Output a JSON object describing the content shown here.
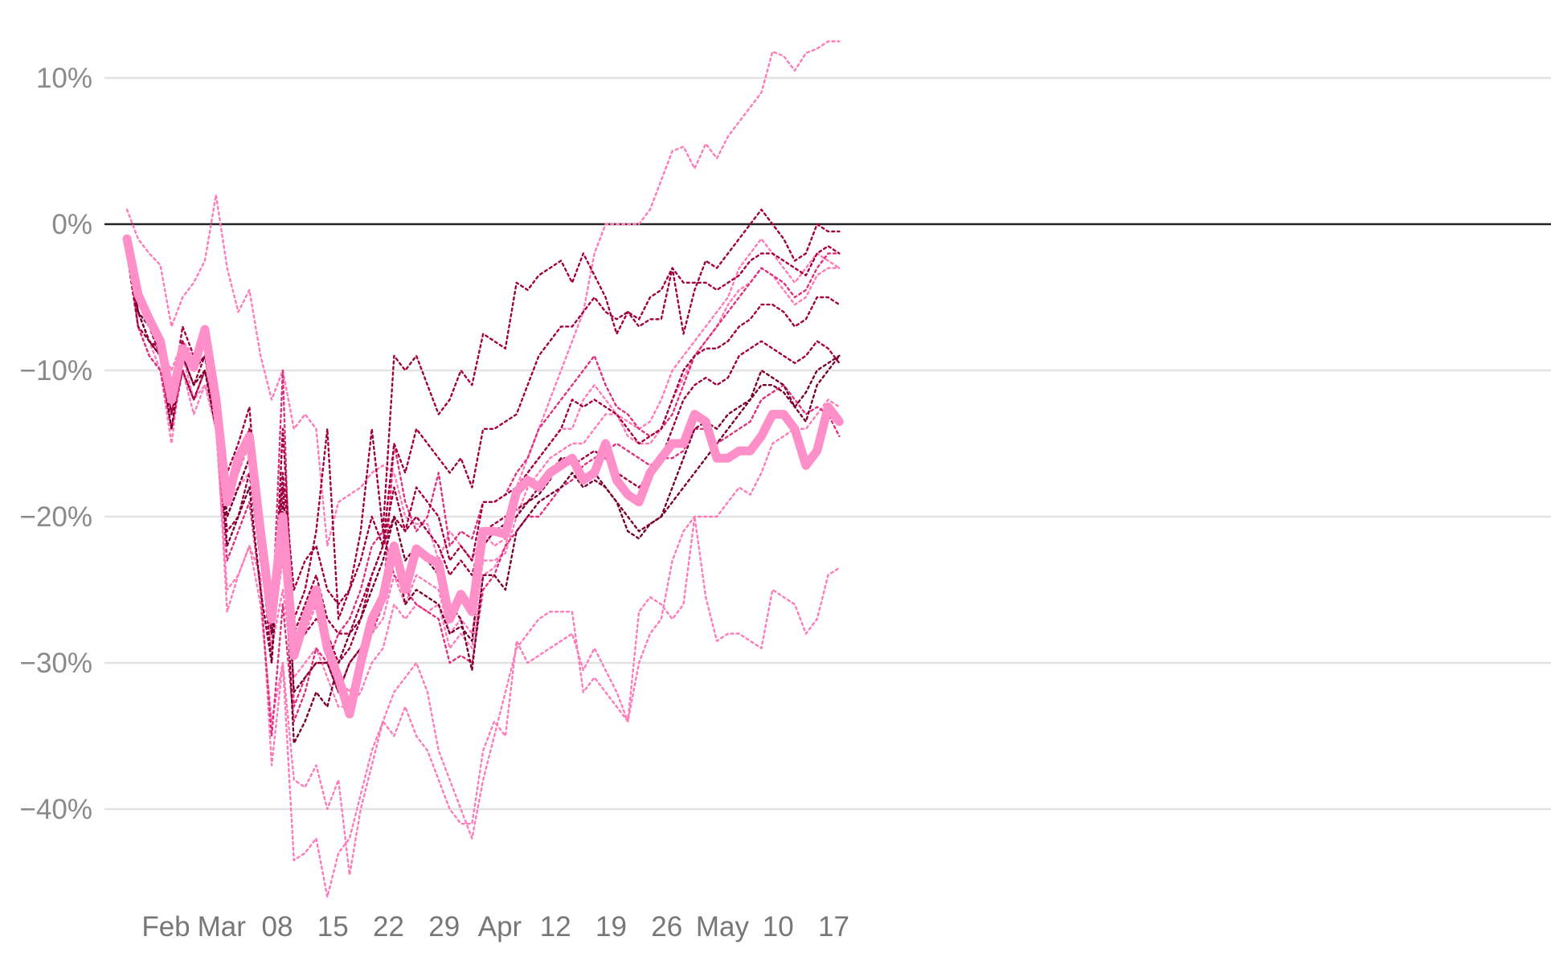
{
  "chart_data": {
    "type": "line",
    "title": "",
    "xlabel": "",
    "ylabel": "",
    "grid": true,
    "y_ticks": [
      {
        "value": 10,
        "label": "10%"
      },
      {
        "value": 0,
        "label": "0%"
      },
      {
        "value": -10,
        "label": "−10%"
      },
      {
        "value": -20,
        "label": "−20%"
      },
      {
        "value": -30,
        "label": "−30%"
      },
      {
        "value": -40,
        "label": "−40%"
      }
    ],
    "x_ticks": [
      {
        "value": 3.5,
        "label": "Feb"
      },
      {
        "value": 8.5,
        "label": "Mar"
      },
      {
        "value": 13.5,
        "label": "08"
      },
      {
        "value": 18.5,
        "label": "15"
      },
      {
        "value": 23.5,
        "label": "22"
      },
      {
        "value": 28.5,
        "label": "29"
      },
      {
        "value": 33.5,
        "label": "Apr"
      },
      {
        "value": 38.5,
        "label": "12"
      },
      {
        "value": 43.5,
        "label": "19"
      },
      {
        "value": 48.5,
        "label": "26"
      },
      {
        "value": 53.5,
        "label": "May"
      },
      {
        "value": 58.5,
        "label": "10"
      },
      {
        "value": 63.5,
        "label": "17"
      }
    ],
    "xlim": [
      0,
      64.5
    ],
    "ylim": [
      -46,
      14
    ],
    "colors": {
      "highlight": "#ff8fc8",
      "light": "#ff7ab8",
      "medium": "#e0307d",
      "dark": "#a3003f",
      "darker": "#7a0030"
    },
    "x": [
      0,
      1,
      2,
      3,
      4,
      5,
      6,
      7,
      8,
      9,
      10,
      11,
      12,
      13,
      14,
      15,
      16,
      17,
      18,
      19,
      20,
      21,
      22,
      23,
      24,
      25,
      26,
      27,
      28,
      29,
      30,
      31,
      32,
      33,
      34,
      35,
      36,
      37,
      38,
      39,
      40,
      41,
      42,
      43,
      44,
      45,
      46,
      47,
      48,
      49,
      50,
      51,
      52,
      53,
      54,
      55,
      56,
      57,
      58,
      59,
      60,
      61,
      62,
      63,
      64
    ],
    "highlight_series": {
      "values": [
        -1,
        -4.8,
        -6.5,
        -8,
        -12,
        -8.5,
        -9.8,
        -7.2,
        -12,
        -19,
        -16,
        -14.5,
        -21,
        -27,
        -20,
        -29.5,
        -27,
        -25,
        -29,
        -31,
        -33.5,
        -30,
        -27,
        -25.5,
        -22,
        -25,
        -22.2,
        -22.8,
        -23.2,
        -27,
        -25.3,
        -26.5,
        -21,
        -21,
        -21.2,
        -18.3,
        -17.5,
        -18,
        -17,
        -16.5,
        -16,
        -17.5,
        -17,
        -15,
        -17.5,
        -18.5,
        -19,
        -17,
        -16,
        -15,
        -15,
        -13,
        -13.5,
        -16,
        -16,
        -15.5,
        -15.5,
        -14.5,
        -13,
        -13,
        -14,
        -16.5,
        -15.5,
        -12.5,
        -13.5
      ]
    },
    "series": [
      {
        "tone": "light",
        "values": [
          1,
          -1,
          -2,
          -2.8,
          -7,
          -5,
          -4,
          -2.5,
          2,
          -3,
          -6,
          -4.5,
          -9,
          -12,
          -10,
          -14,
          -13,
          -14,
          -22,
          -19,
          -18.5,
          -18,
          -17,
          -16.5,
          -17,
          -20,
          -20.5,
          -20.5,
          -23,
          -21,
          -22,
          -23,
          -21,
          -22,
          -21.5,
          -18,
          -16,
          -14,
          -12,
          -10,
          -8,
          -6,
          -2,
          0,
          0,
          0,
          0,
          1,
          3,
          5,
          5.3,
          3.8,
          5.5,
          4.5,
          6,
          7,
          8,
          9,
          11.8,
          11.5,
          10.5,
          11.7,
          12,
          12.5,
          12.5
        ]
      },
      {
        "tone": "light",
        "values": [
          -1,
          -5,
          -7,
          -8.5,
          -10,
          -8,
          -9,
          -8,
          -12,
          -18,
          -17,
          -15,
          -20,
          -28,
          -23,
          -29,
          -28,
          -26,
          -29,
          -31,
          -32,
          -30,
          -28,
          -27,
          -24,
          -26,
          -24,
          -24.5,
          -25,
          -28,
          -27,
          -28,
          -23,
          -23,
          -22.5,
          -20,
          -18,
          -17,
          -16,
          -15.5,
          -15,
          -15,
          -14,
          -13,
          -13,
          -13.5,
          -14,
          -13.5,
          -12,
          -10,
          -9,
          -8,
          -7,
          -6,
          -5,
          -3,
          -2,
          -1,
          -2,
          -3,
          -4,
          -3,
          -2,
          -2.5,
          -3
        ]
      },
      {
        "tone": "light",
        "values": [
          -2,
          -6,
          -8,
          -9,
          -11,
          -9,
          -10,
          -9,
          -13,
          -19,
          -18,
          -17,
          -21,
          -29,
          -25,
          -31,
          -30,
          -29,
          -31,
          -33,
          -33,
          -32,
          -30,
          -29,
          -26,
          -27,
          -26,
          -26.5,
          -26,
          -29,
          -28,
          -29,
          -24,
          -23.5,
          -22,
          -19,
          -17,
          -16,
          -15,
          -14,
          -14,
          -12,
          -11,
          -12,
          -13,
          -14.5,
          -15,
          -15,
          -14,
          -12,
          -10.5,
          -9,
          -8,
          -7,
          -5.5,
          -4.5,
          -4,
          -3,
          -3.5,
          -4.5,
          -5.5,
          -5,
          -3.5,
          -3,
          -3
        ]
      },
      {
        "tone": "light",
        "values": [
          -1,
          -7,
          -9,
          -10,
          -15,
          -9,
          -12,
          -11,
          -13,
          -26.5,
          -24,
          -22,
          -24,
          -37,
          -30,
          -38,
          -38.5,
          -37,
          -40,
          -38,
          -44.5,
          -40,
          -37,
          -34,
          -35,
          -33,
          -35,
          -36,
          -38,
          -40,
          -41,
          -41,
          -36,
          -34,
          -35,
          -28.5,
          -30,
          -29.5,
          -29,
          -28.5,
          -28,
          -30.5,
          -29,
          -30.5,
          -32,
          -34,
          -26.5,
          -25.5,
          -26,
          -27,
          -26,
          -20,
          -25.5,
          -28.5,
          -28,
          -28,
          -28.5,
          -29,
          -25,
          -25.5,
          -26,
          -28,
          -27,
          -24,
          -23.5
        ]
      },
      {
        "tone": "light",
        "values": [
          -2,
          -6,
          -8,
          -10,
          -14,
          -10,
          -13,
          -11,
          -14,
          -25,
          -24,
          -22,
          -26,
          -34,
          -30,
          -43.5,
          -43,
          -42,
          -46,
          -43,
          -42,
          -39,
          -36,
          -34,
          -32,
          -31,
          -30,
          -32,
          -36,
          -38,
          -40,
          -42,
          -38,
          -35,
          -32,
          -29,
          -28,
          -27,
          -26.5,
          -26.5,
          -26.5,
          -32,
          -31,
          -32,
          -33,
          -34,
          -30,
          -28,
          -27,
          -23,
          -21,
          -20,
          -20,
          -20,
          -19,
          -18,
          -18.5,
          -17,
          -15,
          -14.5,
          -14,
          -14,
          -13,
          -12,
          -12.5
        ]
      },
      {
        "tone": "medium",
        "values": [
          -1,
          -5,
          -7,
          -7.5,
          -13,
          -8,
          -10,
          -9,
          -12,
          -20,
          -18,
          -16,
          -23,
          -28,
          -10,
          -33,
          -31,
          -30,
          -30,
          -32,
          -30,
          -29,
          -28,
          -26,
          -15,
          -19,
          -21,
          -20,
          -17,
          -22,
          -21,
          -21.5,
          -19,
          -19,
          -18.5,
          -17,
          -16,
          -14,
          -13,
          -12,
          -11,
          -10,
          -9,
          -11,
          -12.5,
          -13,
          -14,
          -14.5,
          -14,
          -13,
          -11,
          -9,
          -8,
          -7,
          -6,
          -5,
          -4,
          -3,
          -3.5,
          -4,
          -5,
          -4.5,
          -3,
          -2,
          -2
        ]
      },
      {
        "tone": "medium",
        "values": [
          -1,
          -7,
          -9,
          -10,
          -14,
          -10,
          -12,
          -10,
          -13,
          -23,
          -21,
          -19,
          -25,
          -35,
          -26,
          -34,
          -32,
          -29,
          -30,
          -28,
          -27,
          -25,
          -22,
          -21,
          -24,
          -25,
          -26,
          -26.5,
          -27,
          -30,
          -29.5,
          -30,
          -25,
          -24,
          -22,
          -21,
          -20,
          -20,
          -19,
          -18,
          -17.5,
          -16.5,
          -16,
          -15.5,
          -15,
          -15.5,
          -16,
          -16.5,
          -16,
          -16,
          -15.5,
          -14,
          -14,
          -15,
          -14.5,
          -14,
          -13.5,
          -12,
          -11.5,
          -11,
          -12,
          -13,
          -12.5,
          -13,
          -14.5
        ]
      },
      {
        "tone": "dark",
        "values": [
          -1,
          -5,
          -7,
          -9,
          -12,
          -7,
          -9,
          -8,
          -11,
          -17,
          -15,
          -12.5,
          -22,
          -30,
          -14,
          -27,
          -25,
          -21,
          -14,
          -27,
          -25,
          -21,
          -14,
          -21,
          -9,
          -10,
          -9,
          -11,
          -13,
          -12,
          -10,
          -11,
          -7.5,
          -8,
          -8.5,
          -4,
          -4.5,
          -3.5,
          -3,
          -2.5,
          -4,
          -2,
          -3.5,
          -5,
          -7.5,
          -6,
          -7,
          -6.5,
          -6.5,
          -3,
          -7.5,
          -4.5,
          -2.5,
          -3,
          -2,
          -1,
          0,
          1,
          0,
          -1,
          -2.5,
          -2,
          0,
          -0.5,
          -0.5
        ]
      },
      {
        "tone": "dark",
        "values": [
          -2,
          -6,
          -8,
          -8.5,
          -13,
          -9,
          -11,
          -9,
          -13,
          -19,
          -17,
          -14,
          -22,
          -27,
          -17,
          -25,
          -23,
          -22,
          -25,
          -26,
          -25,
          -23,
          -20,
          -22,
          -15,
          -17,
          -14,
          -15,
          -16,
          -17,
          -16,
          -18,
          -14,
          -14,
          -13.5,
          -13,
          -11,
          -9,
          -8,
          -7,
          -7,
          -6,
          -5,
          -6,
          -6.5,
          -6,
          -6.5,
          -5,
          -4.5,
          -3,
          -4,
          -4,
          -4,
          -4.5,
          -4,
          -3.5,
          -2.5,
          -2,
          -2,
          -2.5,
          -3,
          -3.5,
          -2,
          -1.5,
          -2
        ]
      },
      {
        "tone": "dark",
        "values": [
          -2,
          -7,
          -8,
          -9,
          -13,
          -10,
          -12,
          -10,
          -14,
          -21,
          -20,
          -17,
          -23,
          -27,
          -20,
          -29,
          -28,
          -27,
          -28,
          -30,
          -29,
          -27,
          -24,
          -22,
          -20,
          -21,
          -20,
          -21,
          -22,
          -24,
          -23,
          -24,
          -21,
          -20.5,
          -20,
          -19.5,
          -19,
          -18,
          -17,
          -16,
          -16.5,
          -16,
          -15.5,
          -16,
          -17,
          -17.5,
          -18,
          -17,
          -16,
          -14,
          -12,
          -11,
          -10.5,
          -11,
          -10.5,
          -9,
          -8.5,
          -8,
          -8.5,
          -9,
          -9.5,
          -9,
          -8,
          -8.5,
          -9.5
        ]
      },
      {
        "tone": "darker",
        "values": [
          -1,
          -6,
          -7,
          -8,
          -12,
          -9,
          -10,
          -9,
          -13,
          -22,
          -20,
          -18,
          -25,
          -30,
          -19,
          -32,
          -31,
          -30,
          -30,
          -32,
          -30,
          -29,
          -27,
          -26,
          -22,
          -26,
          -25,
          -25.5,
          -26,
          -28,
          -27.5,
          -28.5,
          -22,
          -21,
          -20.5,
          -20,
          -19,
          -18.5,
          -17.5,
          -16,
          -16,
          -17.5,
          -17,
          -18,
          -19,
          -20,
          -21,
          -20.5,
          -20,
          -18,
          -16,
          -14,
          -13.5,
          -14,
          -13,
          -12.5,
          -12,
          -11,
          -11,
          -11.5,
          -12.5,
          -13.5,
          -11,
          -10,
          -9
        ]
      },
      {
        "tone": "darker",
        "values": [
          -2,
          -6,
          -8,
          -9,
          -14,
          -9,
          -11,
          -10,
          -14,
          -20,
          -18,
          -16,
          -22,
          -28,
          -20,
          -35.5,
          -34,
          -32,
          -33,
          -30,
          -28,
          -27,
          -25,
          -23,
          -20,
          -23,
          -22,
          -23,
          -24,
          -26,
          -27,
          -30.5,
          -24,
          -24,
          -25,
          -21,
          -20,
          -19,
          -18.5,
          -18,
          -17,
          -18,
          -17.5,
          -18,
          -19,
          -21,
          -21.5,
          -20.5,
          -20,
          -19,
          -18,
          -17,
          -16,
          -15,
          -14,
          -13,
          -12,
          -10,
          -10.5,
          -11,
          -12.5,
          -11.5,
          -10,
          -9.5,
          -9
        ]
      },
      {
        "tone": "dark",
        "values": [
          -1,
          -5,
          -6.5,
          -8,
          -11,
          -8,
          -10,
          -8,
          -12,
          -18,
          -16,
          -14,
          -20,
          -26,
          -18,
          -28,
          -26,
          -24,
          -27,
          -28,
          -28,
          -26,
          -24,
          -22,
          -18,
          -21,
          -18,
          -19,
          -20,
          -23,
          -22,
          -23,
          -19,
          -19,
          -18.5,
          -18,
          -17,
          -16,
          -15,
          -14,
          -12,
          -12.5,
          -12,
          -12.5,
          -13,
          -14,
          -15,
          -14.5,
          -14,
          -12,
          -10,
          -9,
          -8.5,
          -8.5,
          -8,
          -7,
          -6.5,
          -5.5,
          -5.5,
          -6,
          -7,
          -6.5,
          -5,
          -5,
          -5.5
        ]
      }
    ]
  }
}
